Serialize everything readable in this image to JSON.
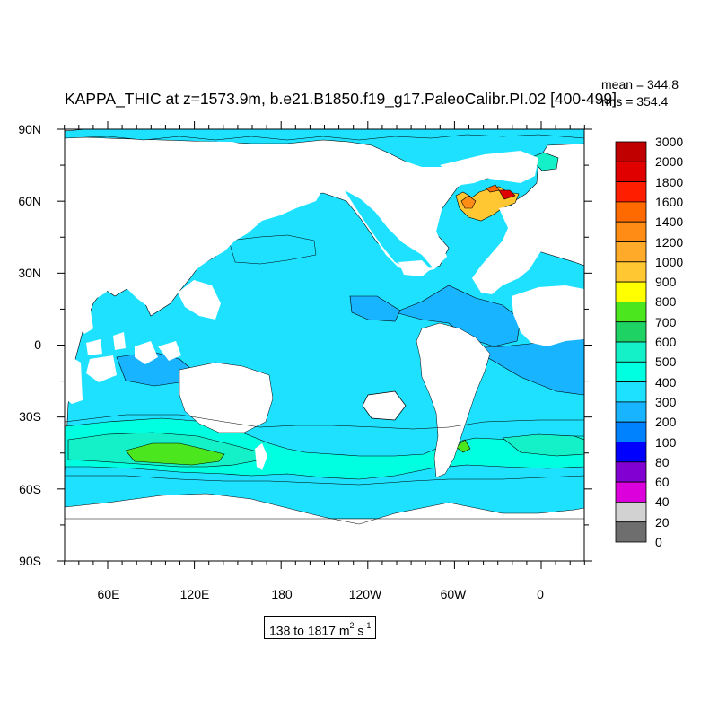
{
  "map": {
    "title": "KAPPA_THIC at z=1573.9m, b.e21.B1850.f19_g17.PaleoCalibr.PI.02 [400-499]",
    "mean_label": "mean = 344.8",
    "rms_label": "rms = 354.4",
    "range_text": "138 to 1817 m",
    "range_unit_sup1": "2",
    "range_unit_s": " s",
    "range_unit_sup2": "-1",
    "projection": "cylindrical equidistant",
    "lat_ticks": [
      "90N",
      "60N",
      "30N",
      "0",
      "30S",
      "60S",
      "90S"
    ],
    "lon_ticks": [
      "60E",
      "120E",
      "180",
      "120W",
      "60W",
      "0"
    ],
    "colors": {
      "land": "#ffffff",
      "ocean_base": "#1ee1ff",
      "contour": "#000000"
    }
  },
  "colorbar": {
    "levels": [
      "3000",
      "2000",
      "1800",
      "1600",
      "1400",
      "1200",
      "1000",
      "900",
      "800",
      "700",
      "600",
      "500",
      "400",
      "300",
      "200",
      "100",
      "80",
      "60",
      "40",
      "20",
      "0"
    ],
    "colors": [
      "#c00000",
      "#e10000",
      "#ff1e00",
      "#ff6a00",
      "#ff8c14",
      "#ffaa28",
      "#ffc832",
      "#ffff00",
      "#4be61e",
      "#1ed264",
      "#14f0c8",
      "#00ffe1",
      "#1ee1ff",
      "#19b4ff",
      "#0082ff",
      "#0000ff",
      "#8200d2",
      "#dc00dc",
      "#d2d2d2",
      "#6e6e6e"
    ]
  }
}
